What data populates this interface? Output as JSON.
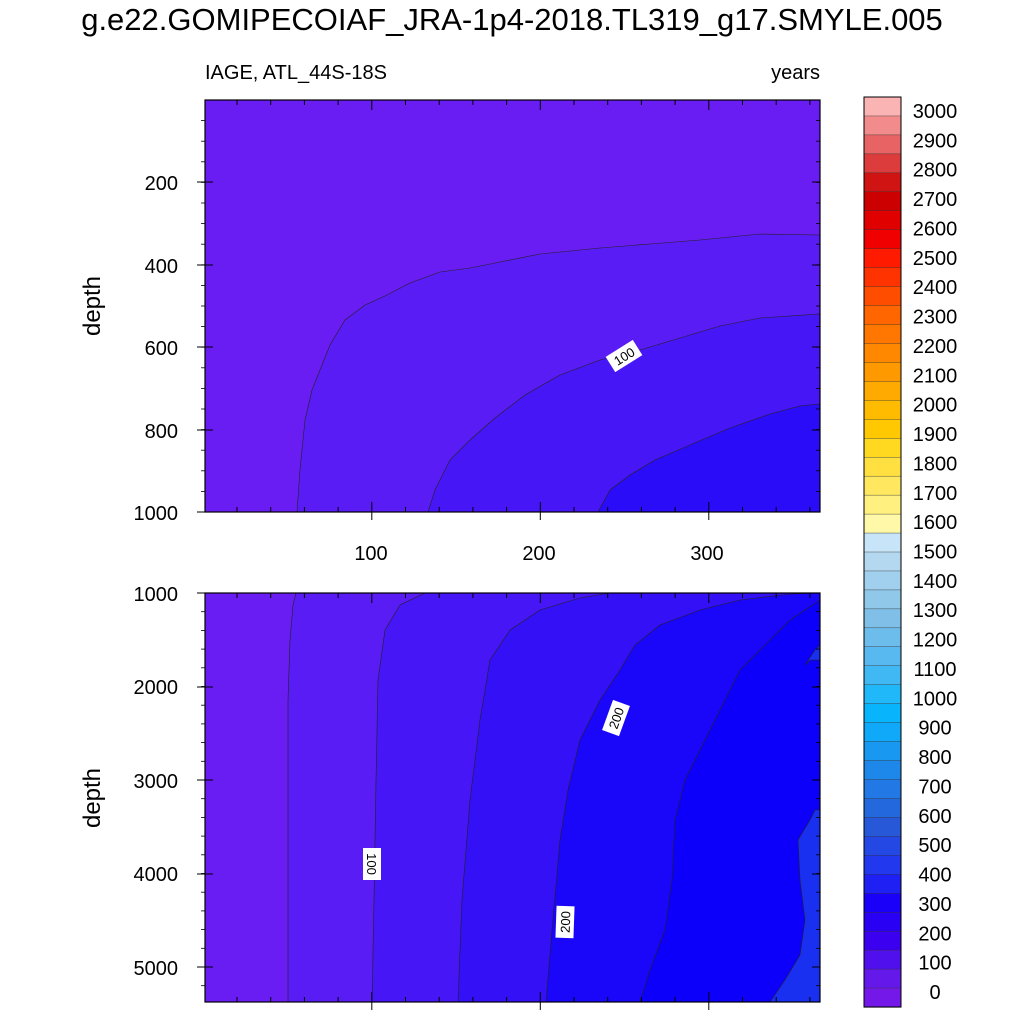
{
  "title": "g.e22.GOMIPECOIAF_JRA-1p4-2018.TL319_g17.SMYLE.005",
  "left_subtitle": "IAGE, ATL_44S-18S",
  "right_subtitle": "years",
  "chart_data": {
    "type": "heatmap",
    "description_note": "",
    "x_ticks": [
      "100",
      "200",
      "300"
    ],
    "xlim": [
      1,
      366
    ],
    "panels": [
      {
        "ylabel": "depth",
        "ylim": [
          1000,
          0
        ],
        "y_ticks": [
          "200",
          "400",
          "600",
          "800",
          "1000"
        ],
        "contour_labels": [
          "100"
        ]
      },
      {
        "ylabel": "depth",
        "ylim": [
          5375,
          1000
        ],
        "y_ticks": [
          "1000",
          "2000",
          "3000",
          "4000",
          "5000"
        ],
        "contour_labels": [
          "100",
          "200",
          "200"
        ]
      }
    ],
    "colorbar": {
      "levels": [
        "3000",
        "2900",
        "2800",
        "2700",
        "2600",
        "2500",
        "2400",
        "2300",
        "2200",
        "2100",
        "2000",
        "1900",
        "1800",
        "1700",
        "1600",
        "1500",
        "1400",
        "1300",
        "1200",
        "1100",
        "1000",
        "900",
        "800",
        "700",
        "600",
        "500",
        "400",
        "300",
        "200",
        "100",
        "0"
      ],
      "colors_top_to_bottom": [
        "#fbb4b4",
        "#f28c8c",
        "#e86464",
        "#dc3c3c",
        "#d01414",
        "#cc0000",
        "#e00000",
        "#f00000",
        "#ff1a00",
        "#ff3300",
        "#ff4d00",
        "#ff6600",
        "#ff7700",
        "#ff8800",
        "#ff9900",
        "#ffaa00",
        "#ffbb00",
        "#ffc800",
        "#ffd820",
        "#ffe040",
        "#ffe860",
        "#fff080",
        "#fff8a8",
        "#c8e4f8",
        "#b4d8f0",
        "#a0d0ee",
        "#90c8ea",
        "#80c0e8",
        "#6cbcec",
        "#58b8f0",
        "#40b8f4",
        "#20b8f8",
        "#08b4fc",
        "#10a8f8",
        "#1898f0",
        "#1e88ea",
        "#2278e4",
        "#2468de",
        "#2658d8",
        "#2448e4",
        "#2238ee",
        "#1e20f4",
        "#1a00f8",
        "#2a00f4",
        "#3c00f0",
        "#5010ee",
        "#6418ea",
        "#7418ea"
      ]
    }
  }
}
